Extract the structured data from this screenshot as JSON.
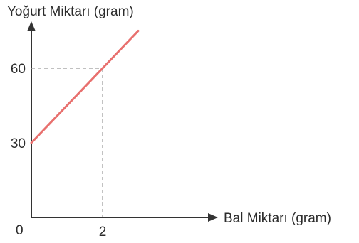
{
  "chart_data": {
    "type": "line",
    "ylabel": "Yoğurt Miktarı (gram)",
    "xlabel": "Bal Miktarı (gram)",
    "origin_label": "0",
    "x_ticks": [
      "2"
    ],
    "y_ticks": [
      "30",
      "60"
    ],
    "xlim": [
      0,
      3.7
    ],
    "ylim": [
      0,
      80
    ],
    "series": [
      {
        "points": [
          [
            0,
            30
          ],
          [
            2,
            60
          ],
          [
            3.0,
            75
          ]
        ]
      }
    ],
    "guide_point": [
      2,
      60
    ],
    "line_color": "#e8706e",
    "guide_color": "#9a9a9a",
    "axis_color": "#333333"
  }
}
